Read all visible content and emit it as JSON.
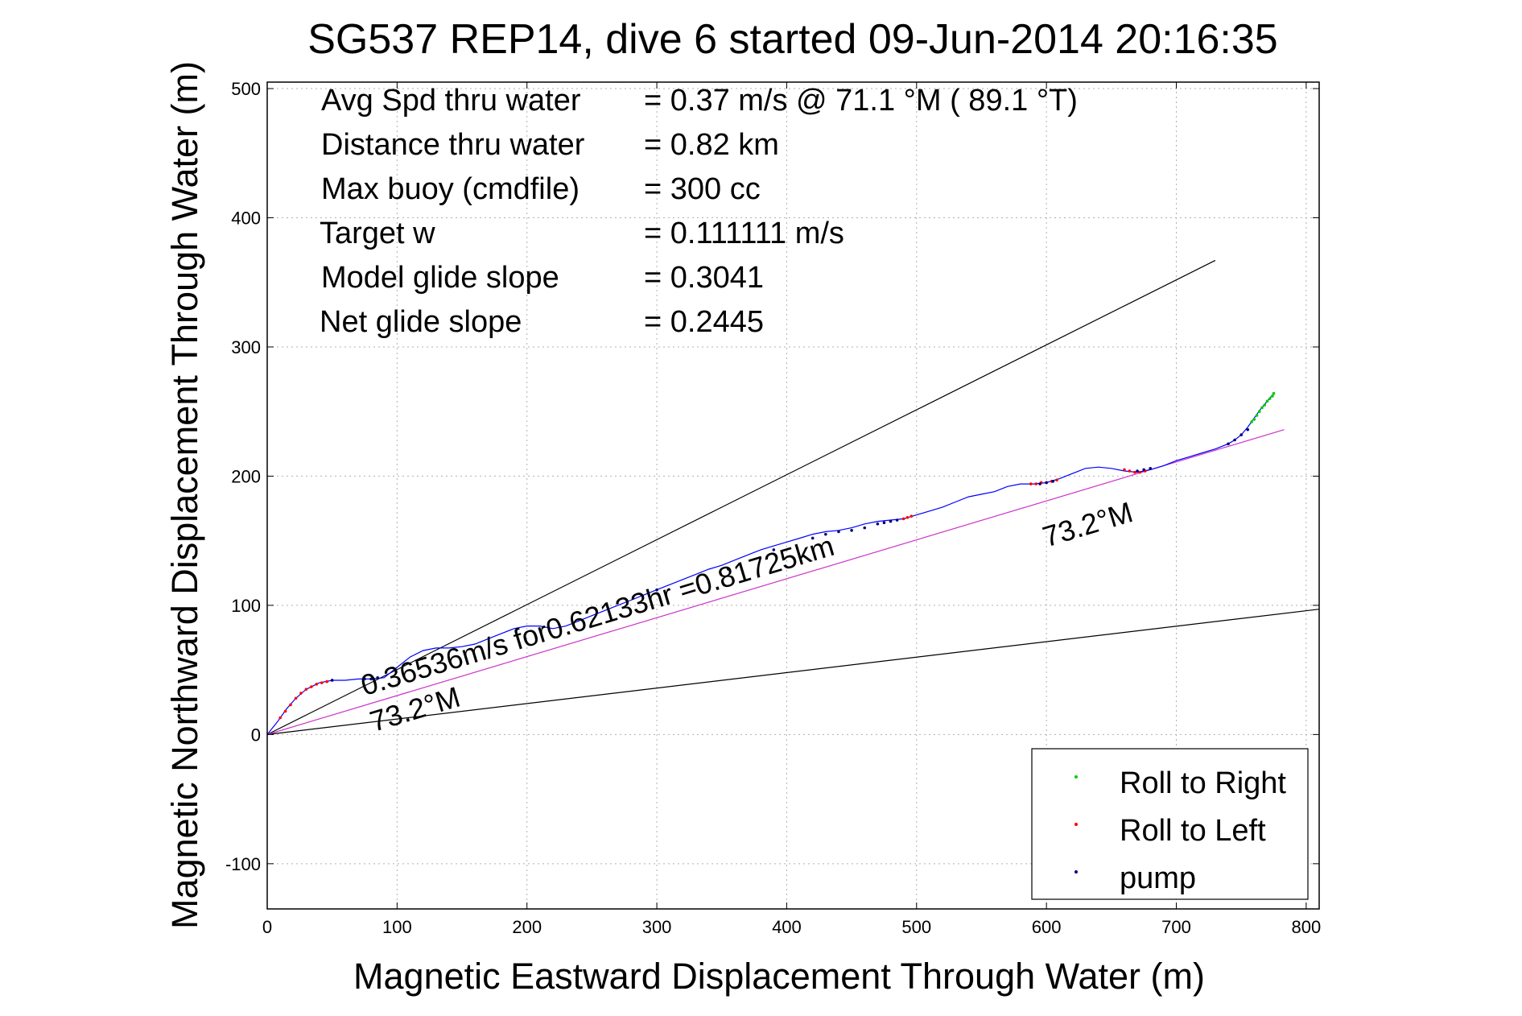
{
  "chart_data": {
    "type": "scatter",
    "title": "SG537 REP14, dive 6 started 09-Jun-2014 20:16:35",
    "xlabel": "Magnetic Eastward Displacement Through Water (m)",
    "ylabel": "Magnetic Northward Displacement Through Water (m)",
    "xlim": [
      0,
      810
    ],
    "ylim": [
      -135,
      505
    ],
    "xticks": [
      0,
      100,
      200,
      300,
      400,
      500,
      600,
      700,
      800
    ],
    "yticks": [
      -100,
      0,
      100,
      200,
      300,
      400,
      500
    ],
    "xtick_labels": [
      "0",
      "100",
      "200",
      "300",
      "400",
      "500",
      "600",
      "700",
      "800"
    ],
    "ytick_labels": [
      "-100",
      "0",
      "100",
      "200",
      "300",
      "400",
      "500"
    ],
    "grid": true,
    "legend_position": "bottom-right",
    "stats": [
      {
        "label": "Avg Spd thru water",
        "value": "=  0.37 m/s @  71.1 °M ( 89.1 °T)"
      },
      {
        "label": "Distance thru water",
        "value": "=  0.82 km"
      },
      {
        "label": "Max buoy (cmdfile)",
        "value": "= 300 cc"
      },
      {
        "label": "Target w",
        "value": "= 0.111111 m/s"
      },
      {
        "label": "Model glide slope",
        "value": "= 0.3041"
      },
      {
        "label": "Net glide slope",
        "value": "= 0.2445"
      }
    ],
    "annotations": [
      {
        "text": "0.36536m/s for0.62133hr =0.81725km",
        "x": 75,
        "y": 30,
        "angle_deg": 16.7
      },
      {
        "text": "73.2°M",
        "x": 82,
        "y": 2,
        "angle_deg": 16.7
      },
      {
        "text": "73.2°M",
        "x": 600,
        "y": 145,
        "angle_deg": 16.7
      }
    ],
    "lines": [
      {
        "name": "upper bound",
        "color": "#000000",
        "x": [
          0,
          730
        ],
        "y": [
          0,
          367
        ]
      },
      {
        "name": "lower bound",
        "color": "#000000",
        "x": [
          0,
          810
        ],
        "y": [
          0,
          97
        ]
      },
      {
        "name": "net heading",
        "color": "#cc33cc",
        "x": [
          0,
          783
        ],
        "y": [
          0,
          236
        ]
      }
    ],
    "track": {
      "color": "#0000ff",
      "x": [
        0,
        8,
        15,
        22,
        30,
        40,
        50,
        60,
        70,
        80,
        90,
        100,
        110,
        120,
        130,
        140,
        150,
        160,
        170,
        180,
        190,
        200,
        210,
        220,
        230,
        240,
        250,
        260,
        270,
        280,
        290,
        300,
        310,
        320,
        330,
        340,
        350,
        360,
        370,
        380,
        390,
        400,
        410,
        420,
        430,
        440,
        450,
        460,
        470,
        480,
        490,
        500,
        510,
        520,
        530,
        540,
        550,
        560,
        570,
        580,
        590,
        600,
        610,
        620,
        630,
        640,
        650,
        660,
        670,
        680,
        690,
        700,
        710,
        720,
        730,
        740,
        745,
        750,
        755,
        760,
        765,
        770,
        775
      ],
      "y": [
        0,
        10,
        20,
        28,
        35,
        40,
        42,
        42,
        43,
        43,
        44,
        52,
        60,
        65,
        67,
        67,
        68,
        70,
        74,
        78,
        82,
        84,
        84,
        82,
        84,
        88,
        92,
        96,
        100,
        104,
        108,
        112,
        116,
        120,
        124,
        128,
        131,
        135,
        139,
        143,
        146,
        149,
        152,
        155,
        157,
        158,
        160,
        163,
        165,
        166,
        167,
        170,
        173,
        176,
        180,
        184,
        186,
        188,
        192,
        194,
        194,
        195,
        198,
        202,
        206,
        207,
        206,
        204,
        203,
        205,
        208,
        212,
        215,
        218,
        221,
        225,
        228,
        232,
        238,
        245,
        252,
        258,
        264
      ]
    },
    "series": [
      {
        "name": "Roll to Right",
        "color": "#00cc00",
        "x": [
          758,
          760,
          762,
          764,
          766,
          768,
          770,
          772,
          774,
          775
        ],
        "y": [
          242,
          244,
          247,
          250,
          253,
          255,
          258,
          260,
          262,
          264
        ]
      },
      {
        "name": "Roll to Left",
        "color": "#ff0000",
        "x": [
          10,
          14,
          18,
          22,
          26,
          30,
          34,
          38,
          42,
          46,
          490,
          493,
          496,
          588,
          592,
          596,
          600,
          604,
          608,
          660,
          664,
          668,
          672,
          676
        ],
        "y": [
          13,
          18,
          23,
          28,
          32,
          35,
          37,
          39,
          40,
          41,
          167,
          168,
          169,
          194,
          194,
          195,
          195,
          196,
          197,
          205,
          204,
          203,
          203,
          204
        ]
      },
      {
        "name": "pump",
        "color": "#000080",
        "x": [
          50,
          75,
          80,
          85,
          300,
          355,
          390,
          420,
          430,
          440,
          450,
          460,
          470,
          475,
          480,
          485,
          595,
          600,
          605,
          670,
          675,
          680,
          740,
          745,
          750,
          755
        ],
        "y": [
          42,
          43,
          43,
          44,
          112,
          128,
          143,
          152,
          155,
          157,
          158,
          160,
          163,
          164,
          165,
          166,
          194,
          195,
          196,
          204,
          205,
          206,
          225,
          228,
          232,
          236
        ]
      }
    ]
  }
}
